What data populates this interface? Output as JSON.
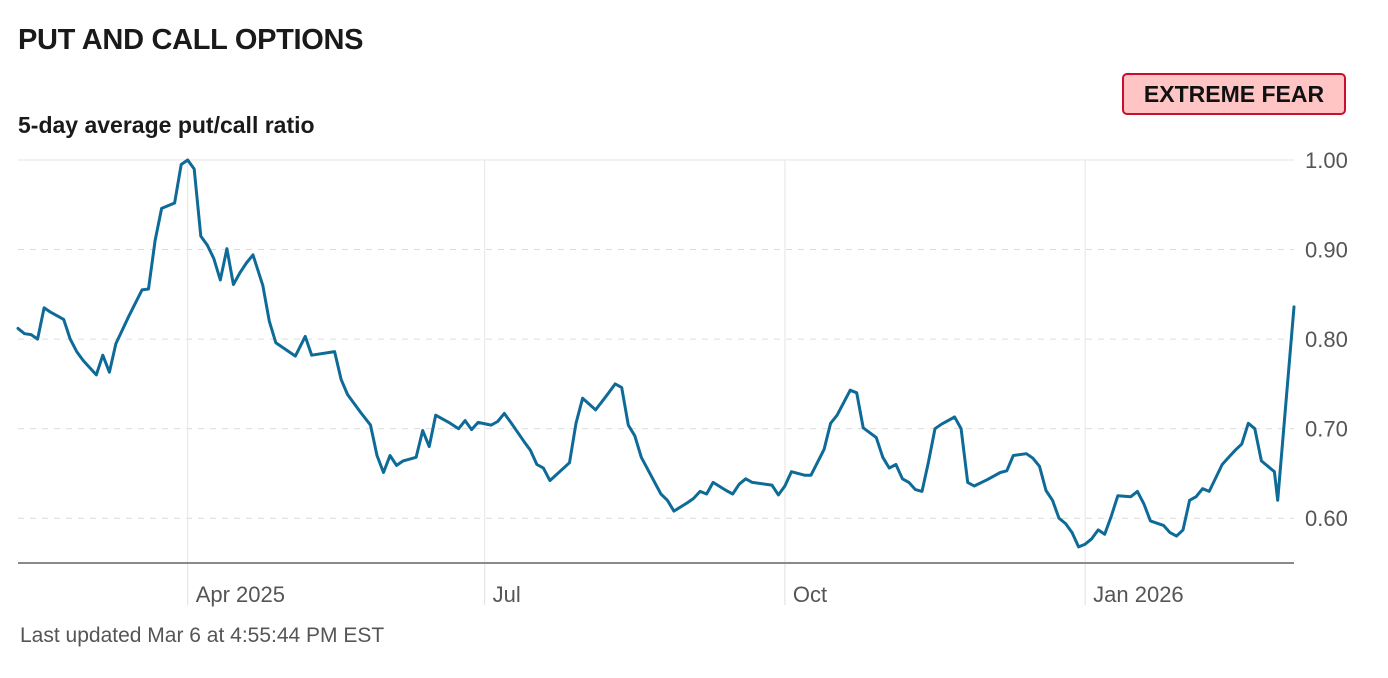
{
  "header": {
    "title": "PUT AND CALL OPTIONS",
    "subtitle": "5-day average put/call ratio",
    "status_label": "EXTREME FEAR"
  },
  "footer": {
    "last_updated": "Last updated Mar 6 at 4:55:44 PM EST"
  },
  "colors": {
    "line": "#0e6a97",
    "badge_bg": "#ffc4c4",
    "badge_border": "#c8102e"
  },
  "chart_data": {
    "type": "line",
    "title": "",
    "ylabel": "5-day average put/call ratio",
    "ylim": [
      0.55,
      1.0
    ],
    "xlim": [
      "2025-02-08",
      "2026-03-06"
    ],
    "y_ticks": [
      {
        "value": 1.0,
        "label": "1.00"
      },
      {
        "value": 0.9,
        "label": "0.90"
      },
      {
        "value": 0.8,
        "label": "0.80"
      },
      {
        "value": 0.7,
        "label": "0.70"
      },
      {
        "value": 0.6,
        "label": "0.60"
      }
    ],
    "x_ticks": [
      {
        "date": "2025-04-01",
        "label": "Apr 2025"
      },
      {
        "date": "2025-07-01",
        "label": "Jul"
      },
      {
        "date": "2025-10-01",
        "label": "Oct"
      },
      {
        "date": "2026-01-01",
        "label": "Jan 2026"
      }
    ],
    "grid": true,
    "legend": "none",
    "series": [
      {
        "points": [
          [
            "2025-02-08",
            0.812
          ],
          [
            "2025-02-10",
            0.806
          ],
          [
            "2025-02-12",
            0.805
          ],
          [
            "2025-02-14",
            0.8
          ],
          [
            "2025-02-16",
            0.835
          ],
          [
            "2025-02-18",
            0.83
          ],
          [
            "2025-02-20",
            0.826
          ],
          [
            "2025-02-22",
            0.822
          ],
          [
            "2025-02-24",
            0.8
          ],
          [
            "2025-02-26",
            0.786
          ],
          [
            "2025-02-28",
            0.776
          ],
          [
            "2025-03-02",
            0.768
          ],
          [
            "2025-03-04",
            0.76
          ],
          [
            "2025-03-06",
            0.782
          ],
          [
            "2025-03-08",
            0.763
          ],
          [
            "2025-03-10",
            0.795
          ],
          [
            "2025-03-14",
            0.826
          ],
          [
            "2025-03-18",
            0.855
          ],
          [
            "2025-03-20",
            0.856
          ],
          [
            "2025-03-22",
            0.91
          ],
          [
            "2025-03-24",
            0.946
          ],
          [
            "2025-03-28",
            0.952
          ],
          [
            "2025-03-30",
            0.995
          ],
          [
            "2025-04-01",
            1.0
          ],
          [
            "2025-04-03",
            0.99
          ],
          [
            "2025-04-05",
            0.915
          ],
          [
            "2025-04-07",
            0.905
          ],
          [
            "2025-04-09",
            0.89
          ],
          [
            "2025-04-11",
            0.866
          ],
          [
            "2025-04-13",
            0.901
          ],
          [
            "2025-04-15",
            0.861
          ],
          [
            "2025-04-17",
            0.874
          ],
          [
            "2025-04-19",
            0.885
          ],
          [
            "2025-04-21",
            0.894
          ],
          [
            "2025-04-24",
            0.86
          ],
          [
            "2025-04-26",
            0.82
          ],
          [
            "2025-04-28",
            0.796
          ],
          [
            "2025-05-04",
            0.781
          ],
          [
            "2025-05-07",
            0.803
          ],
          [
            "2025-05-09",
            0.782
          ],
          [
            "2025-05-16",
            0.786
          ],
          [
            "2025-05-18",
            0.755
          ],
          [
            "2025-05-20",
            0.738
          ],
          [
            "2025-05-24",
            0.718
          ],
          [
            "2025-05-27",
            0.704
          ],
          [
            "2025-05-29",
            0.67
          ],
          [
            "2025-05-31",
            0.651
          ],
          [
            "2025-06-02",
            0.67
          ],
          [
            "2025-06-04",
            0.659
          ],
          [
            "2025-06-06",
            0.664
          ],
          [
            "2025-06-10",
            0.668
          ],
          [
            "2025-06-12",
            0.698
          ],
          [
            "2025-06-14",
            0.68
          ],
          [
            "2025-06-16",
            0.715
          ],
          [
            "2025-06-20",
            0.707
          ],
          [
            "2025-06-23",
            0.7
          ],
          [
            "2025-06-25",
            0.709
          ],
          [
            "2025-06-27",
            0.699
          ],
          [
            "2025-06-29",
            0.707
          ],
          [
            "2025-07-03",
            0.704
          ],
          [
            "2025-07-05",
            0.708
          ],
          [
            "2025-07-07",
            0.717
          ],
          [
            "2025-07-09",
            0.707
          ],
          [
            "2025-07-13",
            0.686
          ],
          [
            "2025-07-15",
            0.676
          ],
          [
            "2025-07-17",
            0.66
          ],
          [
            "2025-07-19",
            0.656
          ],
          [
            "2025-07-21",
            0.642
          ],
          [
            "2025-07-27",
            0.662
          ],
          [
            "2025-07-29",
            0.706
          ],
          [
            "2025-07-31",
            0.734
          ],
          [
            "2025-08-04",
            0.721
          ],
          [
            "2025-08-08",
            0.74
          ],
          [
            "2025-08-10",
            0.75
          ],
          [
            "2025-08-12",
            0.746
          ],
          [
            "2025-08-14",
            0.704
          ],
          [
            "2025-08-16",
            0.692
          ],
          [
            "2025-08-18",
            0.668
          ],
          [
            "2025-08-24",
            0.627
          ],
          [
            "2025-08-26",
            0.62
          ],
          [
            "2025-08-28",
            0.608
          ],
          [
            "2025-09-01",
            0.617
          ],
          [
            "2025-09-03",
            0.622
          ],
          [
            "2025-09-05",
            0.63
          ],
          [
            "2025-09-07",
            0.627
          ],
          [
            "2025-09-09",
            0.64
          ],
          [
            "2025-09-13",
            0.631
          ],
          [
            "2025-09-15",
            0.627
          ],
          [
            "2025-09-17",
            0.638
          ],
          [
            "2025-09-19",
            0.644
          ],
          [
            "2025-09-21",
            0.64
          ],
          [
            "2025-09-27",
            0.637
          ],
          [
            "2025-09-29",
            0.626
          ],
          [
            "2025-10-01",
            0.636
          ],
          [
            "2025-10-03",
            0.652
          ],
          [
            "2025-10-07",
            0.648
          ],
          [
            "2025-10-09",
            0.648
          ],
          [
            "2025-10-13",
            0.677
          ],
          [
            "2025-10-15",
            0.706
          ],
          [
            "2025-10-17",
            0.715
          ],
          [
            "2025-10-21",
            0.743
          ],
          [
            "2025-10-23",
            0.74
          ],
          [
            "2025-10-25",
            0.701
          ],
          [
            "2025-10-29",
            0.69
          ],
          [
            "2025-10-31",
            0.668
          ],
          [
            "2025-11-02",
            0.656
          ],
          [
            "2025-11-04",
            0.66
          ],
          [
            "2025-11-06",
            0.644
          ],
          [
            "2025-11-08",
            0.64
          ],
          [
            "2025-11-10",
            0.632
          ],
          [
            "2025-11-12",
            0.63
          ],
          [
            "2025-11-14",
            0.663
          ],
          [
            "2025-11-16",
            0.7
          ],
          [
            "2025-11-18",
            0.705
          ],
          [
            "2025-11-22",
            0.713
          ],
          [
            "2025-11-24",
            0.7
          ],
          [
            "2025-11-26",
            0.64
          ],
          [
            "2025-11-28",
            0.636
          ],
          [
            "2025-12-02",
            0.643
          ],
          [
            "2025-12-06",
            0.651
          ],
          [
            "2025-12-08",
            0.653
          ],
          [
            "2025-12-10",
            0.67
          ],
          [
            "2025-12-14",
            0.672
          ],
          [
            "2025-12-16",
            0.667
          ],
          [
            "2025-12-18",
            0.658
          ],
          [
            "2025-12-20",
            0.631
          ],
          [
            "2025-12-22",
            0.62
          ],
          [
            "2025-12-24",
            0.6
          ],
          [
            "2025-12-26",
            0.594
          ],
          [
            "2025-12-28",
            0.584
          ],
          [
            "2025-12-30",
            0.568
          ],
          [
            "2026-01-01",
            0.571
          ],
          [
            "2026-01-03",
            0.577
          ],
          [
            "2026-01-05",
            0.587
          ],
          [
            "2026-01-07",
            0.582
          ],
          [
            "2026-01-09",
            0.602
          ],
          [
            "2026-01-11",
            0.625
          ],
          [
            "2026-01-15",
            0.624
          ],
          [
            "2026-01-17",
            0.63
          ],
          [
            "2026-01-19",
            0.616
          ],
          [
            "2026-01-21",
            0.597
          ],
          [
            "2026-01-25",
            0.592
          ],
          [
            "2026-01-27",
            0.584
          ],
          [
            "2026-01-29",
            0.58
          ],
          [
            "2026-01-31",
            0.587
          ],
          [
            "2026-02-02",
            0.62
          ],
          [
            "2026-02-04",
            0.624
          ],
          [
            "2026-02-06",
            0.633
          ],
          [
            "2026-02-08",
            0.63
          ],
          [
            "2026-02-12",
            0.66
          ],
          [
            "2026-02-14",
            0.668
          ],
          [
            "2026-02-16",
            0.676
          ],
          [
            "2026-02-18",
            0.683
          ],
          [
            "2026-02-20",
            0.706
          ],
          [
            "2026-02-22",
            0.7
          ],
          [
            "2026-02-24",
            0.664
          ],
          [
            "2026-02-28",
            0.652
          ],
          [
            "2026-03-01",
            0.62
          ],
          [
            "2026-03-06",
            0.836
          ]
        ]
      }
    ]
  }
}
